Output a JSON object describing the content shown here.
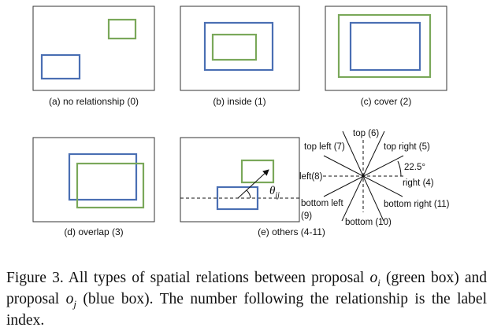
{
  "panels": {
    "a": "(a) no relationship (0)",
    "b": "(b) inside (1)",
    "c": "(c) cover (2)",
    "d": "(d) overlap (3)",
    "e": "(e) others (4-11)"
  },
  "diagram": {
    "theta_symbol": "θ",
    "theta_subscript": "ij",
    "angle": "22.5°",
    "directions": {
      "top": "top (6)",
      "top_left": "top left (7)",
      "top_right": "top right (5)",
      "left": "left(8)",
      "right": "right (4)",
      "bottom_left": "bottom left",
      "bottom_left_index": "(9)",
      "bottom": "bottom (10)",
      "bottom_right": "bottom right (11)"
    }
  },
  "caption": {
    "lead": "Figure 3. All types of spatial relations between proposal",
    "oi_var": "o",
    "oi_sub": "i",
    "mid1": "(green box) and proposal",
    "oj_var": "o",
    "oj_sub": "j",
    "tail": "(blue box). The number following the relationship is the label index."
  },
  "colors": {
    "green_box": "#7aa85a",
    "blue_box": "#4a6fb3"
  }
}
